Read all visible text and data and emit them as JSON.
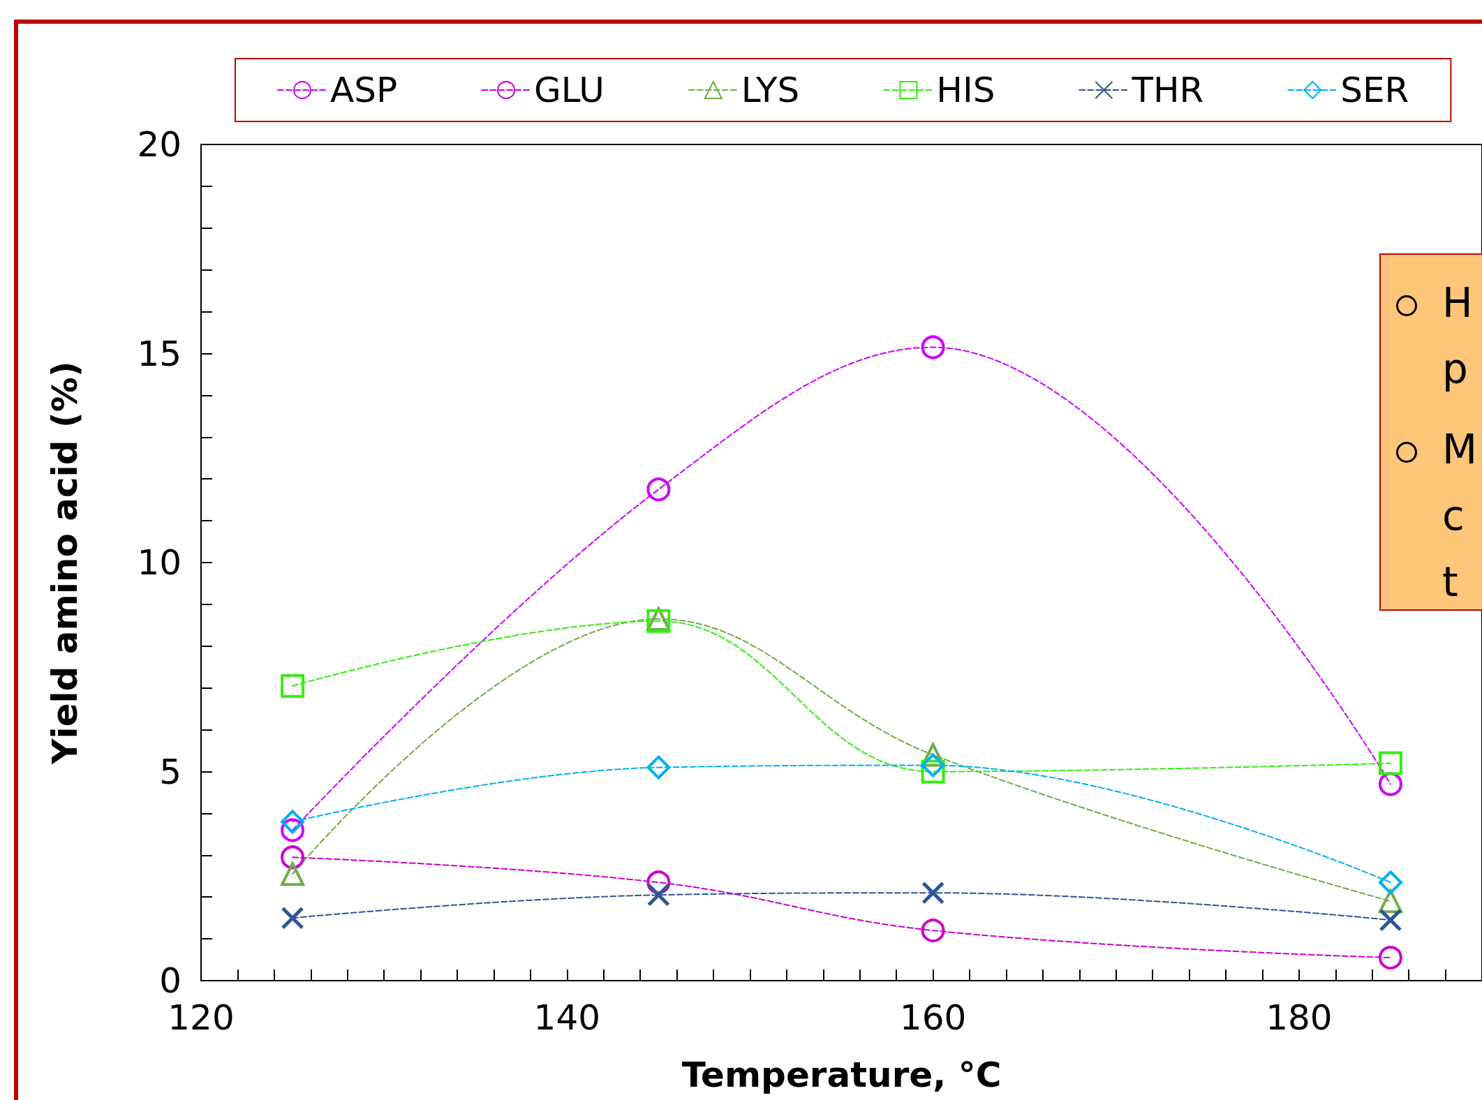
{
  "chart_data": {
    "type": "line",
    "xlabel": "Temperature, °C",
    "ylabel": "Yield amino acid (%)",
    "x": [
      125,
      145,
      160,
      185
    ],
    "series": [
      {
        "name": "ASP",
        "color": "#cc00ff",
        "marker": "circle",
        "values": [
          3.6,
          11.75,
          15.15,
          4.7
        ]
      },
      {
        "name": "GLU",
        "color": "#cc00cc",
        "marker": "circle",
        "values": [
          2.95,
          2.35,
          1.2,
          0.55
        ]
      },
      {
        "name": "LYS",
        "color": "#70ad47",
        "marker": "triangle",
        "values": [
          2.55,
          8.65,
          5.4,
          1.9
        ]
      },
      {
        "name": "HIS",
        "color": "#33ee11",
        "marker": "square",
        "values": [
          7.05,
          8.6,
          5.0,
          5.2
        ]
      },
      {
        "name": "THR",
        "color": "#2f5597",
        "marker": "cross",
        "values": [
          1.5,
          2.05,
          2.1,
          1.45
        ]
      },
      {
        "name": "SER",
        "color": "#00b0f0",
        "marker": "diamond",
        "values": [
          3.8,
          5.1,
          5.15,
          2.35
        ]
      }
    ],
    "xlim": [
      120,
      190
    ],
    "xticks": [
      120,
      {
        "value": 122,
        "label": null
      },
      {
        "value": 124,
        "label": null
      },
      {
        "value": 126,
        "label": null
      },
      {
        "value": 128,
        "label": null
      },
      {
        "value": 130,
        "label": null
      },
      {
        "value": 132,
        "label": null
      },
      {
        "value": 134,
        "label": null
      },
      {
        "value": 136,
        "label": null
      },
      {
        "value": 138,
        "label": null
      },
      140,
      {
        "value": 142,
        "label": null
      },
      {
        "value": 144,
        "label": null
      },
      {
        "value": 146,
        "label": null
      },
      {
        "value": 148,
        "label": null
      },
      {
        "value": 150,
        "label": null
      },
      {
        "value": 152,
        "label": null
      },
      {
        "value": 154,
        "label": null
      },
      {
        "value": 156,
        "label": null
      },
      {
        "value": 158,
        "label": null
      },
      160,
      {
        "value": 162,
        "label": null
      },
      {
        "value": 164,
        "label": null
      },
      {
        "value": 166,
        "label": null
      },
      {
        "value": 168,
        "label": null
      },
      {
        "value": 170,
        "label": null
      },
      {
        "value": 172,
        "label": null
      },
      {
        "value": 174,
        "label": null
      },
      {
        "value": 176,
        "label": null
      },
      {
        "value": 178,
        "label": null
      },
      180,
      {
        "value": 182,
        "label": null
      },
      {
        "value": 184,
        "label": null
      },
      {
        "value": 186,
        "label": null
      },
      {
        "value": 188,
        "label": null
      }
    ],
    "ylim": [
      0,
      20
    ],
    "yticks": [
      0,
      {
        "value": 1,
        "label": null
      },
      {
        "value": 2,
        "label": null
      },
      {
        "value": 3,
        "label": null
      },
      {
        "value": 4,
        "label": null
      },
      5,
      {
        "value": 6,
        "label": null
      },
      {
        "value": 7,
        "label": null
      },
      {
        "value": 8,
        "label": null
      },
      {
        "value": 9,
        "label": null
      },
      10,
      {
        "value": 11,
        "label": null
      },
      {
        "value": 12,
        "label": null
      },
      {
        "value": 13,
        "label": null
      },
      {
        "value": 14,
        "label": null
      },
      15,
      {
        "value": 16,
        "label": null
      },
      {
        "value": 17,
        "label": null
      },
      {
        "value": 18,
        "label": null
      },
      {
        "value": 19,
        "label": null
      },
      20
    ],
    "legend": "top",
    "line_style": "dashed",
    "annotations": [
      "H",
      "p",
      "M",
      "c",
      "t"
    ]
  }
}
